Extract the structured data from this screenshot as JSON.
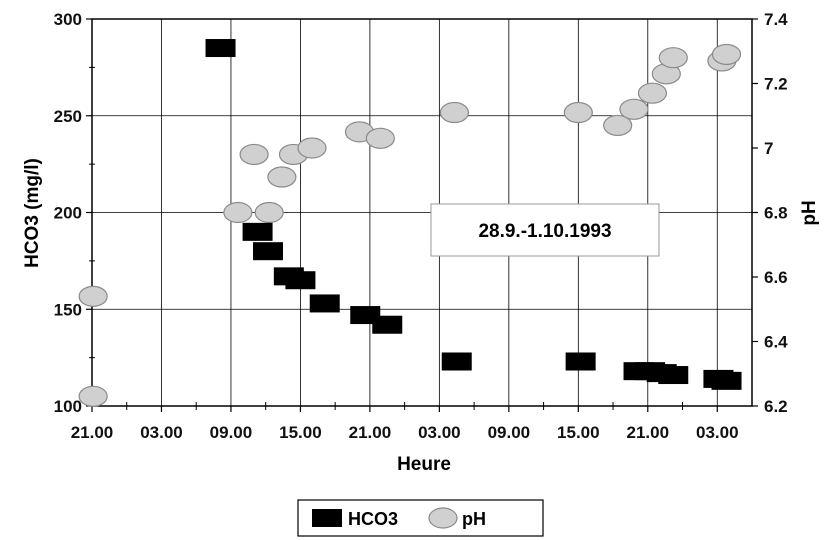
{
  "chart_data": {
    "type": "scatter",
    "xlabel": "Heure",
    "ylabel_left": "HCO3 (mg/l)",
    "ylabel_right": "pH",
    "annotation": "28.9.-1.10.1993",
    "x_tick_labels": [
      "21.00",
      "03.00",
      "09.00",
      "15.00",
      "21.00",
      "03.00",
      "09.00",
      "15.00",
      "21.00",
      "03.00"
    ],
    "x_unit": "hours since first tick (21.00)",
    "xlim": [
      0,
      57
    ],
    "ylim_left": [
      100,
      300
    ],
    "ylim_right": [
      6.2,
      7.4
    ],
    "y_ticks_left": [
      100,
      150,
      200,
      250,
      300
    ],
    "y_ticks_right": [
      6.2,
      6.4,
      6.6,
      6.8,
      7,
      7.2,
      7.4
    ],
    "grid": true,
    "legend": "bottom-center",
    "legend_entries": [
      "HCO3",
      "pH"
    ],
    "series": [
      {
        "name": "HCO3",
        "axis": "left",
        "marker": "square",
        "color": "#000000",
        "x": [
          11.1,
          14.3,
          15.2,
          17.0,
          18.0,
          20.1,
          23.6,
          25.5,
          31.5,
          42.2,
          47.2,
          48.2,
          49.2,
          50.2,
          54.1,
          54.8
        ],
        "y": [
          285,
          190,
          180,
          167,
          165,
          153,
          147,
          142,
          123,
          123,
          118,
          118,
          117,
          116,
          114,
          113
        ]
      },
      {
        "name": "pH",
        "axis": "right",
        "marker": "ellipse",
        "color": "#d0d0d0",
        "x": [
          0.1,
          0.1,
          12.6,
          14.0,
          15.3,
          16.4,
          17.4,
          19.0,
          23.1,
          24.9,
          31.3,
          42.0,
          45.4,
          46.8,
          48.4,
          49.6,
          50.2,
          54.4,
          54.8
        ],
        "y": [
          6.54,
          6.23,
          6.8,
          6.98,
          6.8,
          6.91,
          6.98,
          7.0,
          7.05,
          7.03,
          7.11,
          7.11,
          7.07,
          7.12,
          7.17,
          7.23,
          7.28,
          7.27,
          7.29
        ]
      }
    ]
  }
}
